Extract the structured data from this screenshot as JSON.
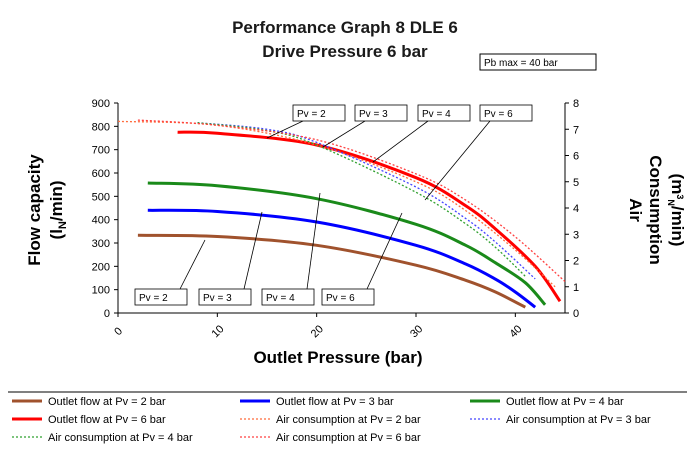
{
  "chart_data": {
    "type": "line",
    "title": "Performance Graph 8 DLE 6",
    "subtitle": "Drive Pressure 6 bar",
    "note": "Pb max = 40 bar",
    "xlabel": "Outlet Pressure (bar)",
    "ylabel_main": "Flow capacity",
    "ylabel_sub": "(l",
    "ylabel_sub_index": "N",
    "ylabel_sub_end": "/min)",
    "y2label_main": "Air",
    "y2label_mid": "Consumption",
    "y2label_sub": "(m",
    "y2label_sup": "3",
    "y2label_sub_index": "N",
    "y2label_sub_end": "/min)",
    "xlim": [
      0,
      45
    ],
    "ylim": [
      0,
      900
    ],
    "y2lim": [
      0,
      8
    ],
    "xticks": [
      "0",
      "10",
      "20",
      "30",
      "40"
    ],
    "yticks": [
      "0",
      "100",
      "200",
      "300",
      "400",
      "500",
      "600",
      "700",
      "800",
      "900"
    ],
    "y2ticks": [
      "0",
      "1",
      "2",
      "3",
      "4",
      "5",
      "6",
      "7",
      "8"
    ],
    "grid": false,
    "legend_position": "bottom",
    "series": [
      {
        "name": "Outlet flow at Pv = 2 bar",
        "axis": "left",
        "style": "solid",
        "color": "#a0522d",
        "x": [
          2,
          10,
          20,
          30,
          35,
          38,
          41
        ],
        "y": [
          333,
          328,
          290,
          205,
          140,
          90,
          25
        ]
      },
      {
        "name": "Outlet flow at Pv = 3 bar",
        "axis": "left",
        "style": "solid",
        "color": "#0000ff",
        "x": [
          3,
          10,
          20,
          30,
          35,
          38,
          40,
          42
        ],
        "y": [
          440,
          435,
          390,
          290,
          210,
          145,
          90,
          25
        ]
      },
      {
        "name": "Outlet flow at Pv = 4 bar",
        "axis": "left",
        "style": "solid",
        "color": "#1a8a1a",
        "x": [
          3,
          10,
          20,
          30,
          35,
          38,
          41,
          43
        ],
        "y": [
          557,
          545,
          490,
          380,
          290,
          215,
          130,
          35
        ]
      },
      {
        "name": "Outlet flow at Pv = 6 bar",
        "axis": "left",
        "style": "solid",
        "color": "#ff0000",
        "x": [
          6,
          10,
          20,
          30,
          35,
          38,
          42,
          44.5
        ],
        "y": [
          775,
          770,
          720,
          580,
          460,
          360,
          200,
          50
        ]
      },
      {
        "name": "Air consumption at Pv = 2 bar",
        "axis": "right",
        "style": "dotted",
        "color": "#ff6a3a",
        "x": [
          0,
          10,
          20,
          30,
          35,
          40,
          44
        ],
        "y": [
          7.3,
          7.15,
          6.4,
          5.0,
          3.9,
          2.4,
          1.0
        ]
      },
      {
        "name": "Air consumption at Pv = 3 bar",
        "axis": "right",
        "style": "dotted",
        "color": "#4444ff",
        "x": [
          8,
          15,
          20,
          30,
          35,
          38,
          42
        ],
        "y": [
          7.25,
          7.0,
          6.5,
          4.8,
          3.6,
          2.7,
          1.3
        ]
      },
      {
        "name": "Air consumption at Pv = 4 bar",
        "axis": "right",
        "style": "dotted",
        "color": "#2fa02f",
        "x": [
          8,
          15,
          20,
          30,
          35,
          38,
          41
        ],
        "y": [
          7.25,
          6.95,
          6.4,
          4.6,
          3.4,
          2.5,
          1.4
        ]
      },
      {
        "name": "Air consumption at Pv = 6 bar",
        "axis": "right",
        "style": "dotted",
        "color": "#ff4040",
        "x": [
          2,
          10,
          20,
          30,
          35,
          40,
          45
        ],
        "y": [
          7.35,
          7.15,
          6.6,
          5.3,
          4.3,
          2.9,
          1.2
        ]
      }
    ],
    "annotations": {
      "top_labels": [
        "Pv = 2",
        "Pv = 3",
        "Pv = 4",
        "Pv = 6"
      ],
      "bottom_labels": [
        "Pv = 2",
        "Pv = 3",
        "Pv = 4",
        "Pv = 6"
      ]
    }
  }
}
